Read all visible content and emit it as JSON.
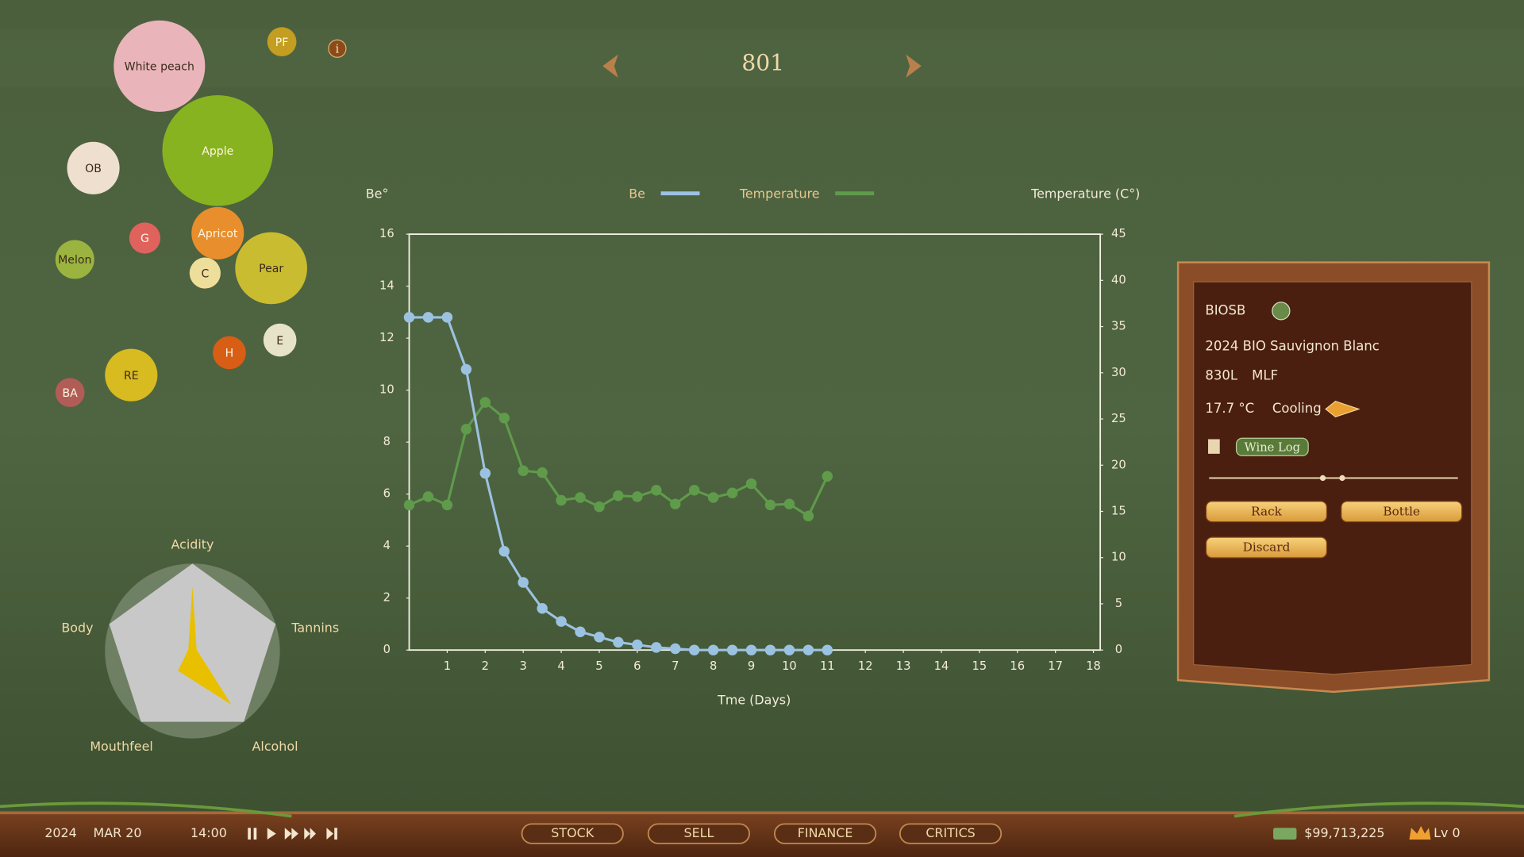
{
  "header": {
    "batch": "801"
  },
  "aromas": [
    {
      "label": "White peach",
      "color": "#f1b9c1"
    },
    {
      "label": "PF",
      "color": "#c9a11f"
    },
    {
      "label": "Apple",
      "color": "#8bb71f"
    },
    {
      "label": "OB",
      "color": "#f8e6d6"
    },
    {
      "label": "G",
      "color": "#e8625f"
    },
    {
      "label": "Apricot",
      "color": "#f0902c"
    },
    {
      "label": "Melon",
      "color": "#9fb840"
    },
    {
      "label": "C",
      "color": "#f6e6a0"
    },
    {
      "label": "Pear",
      "color": "#d1c12f"
    },
    {
      "label": "E",
      "color": "#efead0"
    },
    {
      "label": "H",
      "color": "#de5e12"
    },
    {
      "label": "RE",
      "color": "#dfc01f"
    },
    {
      "label": "BA",
      "color": "#b65c58"
    }
  ],
  "radar": {
    "axes": [
      "Acidity",
      "Tannins",
      "Alcohol",
      "Mouthfeel",
      "Body"
    ],
    "values": [
      0.74,
      0.05,
      0.76,
      0.28,
      0.05
    ],
    "color": "#e8c000"
  },
  "chart_data": {
    "type": "line",
    "y_label": "Be°",
    "y2_label": "Temperature (C°)",
    "x_label": "Tme (Days)",
    "x": [
      0,
      0.5,
      1,
      1.5,
      2,
      2.5,
      3,
      3.5,
      4,
      4.5,
      5,
      5.5,
      6,
      6.5,
      7,
      7.5,
      8,
      8.5,
      9,
      9.5,
      10,
      10.5,
      11
    ],
    "series": [
      {
        "name": "Be",
        "color": "#9cc2e2",
        "values": [
          12.8,
          12.8,
          12.8,
          10.8,
          6.8,
          3.8,
          2.6,
          1.6,
          1.1,
          0.7,
          0.5,
          0.3,
          0.2,
          0.1,
          0.05,
          0,
          0,
          0,
          0,
          0,
          0,
          0,
          0
        ]
      },
      {
        "name": "Temperature",
        "color": "#5f9b4b",
        "axis": "y2",
        "values": [
          15.7,
          16.6,
          15.7,
          23.9,
          26.8,
          25.1,
          19.4,
          19.2,
          16.2,
          16.5,
          15.5,
          16.7,
          16.6,
          17.3,
          15.8,
          17.3,
          16.5,
          17.0,
          18.0,
          15.7,
          15.8,
          14.5,
          18.8
        ]
      }
    ],
    "xlim": [
      0,
      18
    ],
    "xticks": [
      1,
      2,
      3,
      4,
      5,
      6,
      7,
      8,
      9,
      10,
      11,
      12,
      13,
      14,
      15,
      16,
      17,
      18
    ],
    "ylim": [
      0,
      16
    ],
    "yticks": [
      0,
      2,
      4,
      6,
      8,
      10,
      12,
      14,
      16
    ],
    "y2lim": [
      0,
      45
    ],
    "y2ticks": [
      0,
      5,
      10,
      15,
      20,
      25,
      30,
      35,
      40,
      45
    ],
    "legend": "top"
  },
  "panel": {
    "code": "BIOSB",
    "name": "2024 BIO Sauvignon Blanc",
    "volume": "830L",
    "stage": "MLF",
    "temperature": "17.7 °C",
    "mode": "Cooling",
    "wine_log": "Wine Log",
    "buttons": [
      "Rack",
      "Bottle",
      "Discard"
    ]
  },
  "bottom_bar": {
    "year": "2024",
    "date": "MAR 20",
    "time": "14:00",
    "tabs": [
      "STOCK",
      "SELL",
      "FINANCE",
      "CRITICS"
    ],
    "money": "$99,713,225",
    "level": "Lv 0"
  }
}
